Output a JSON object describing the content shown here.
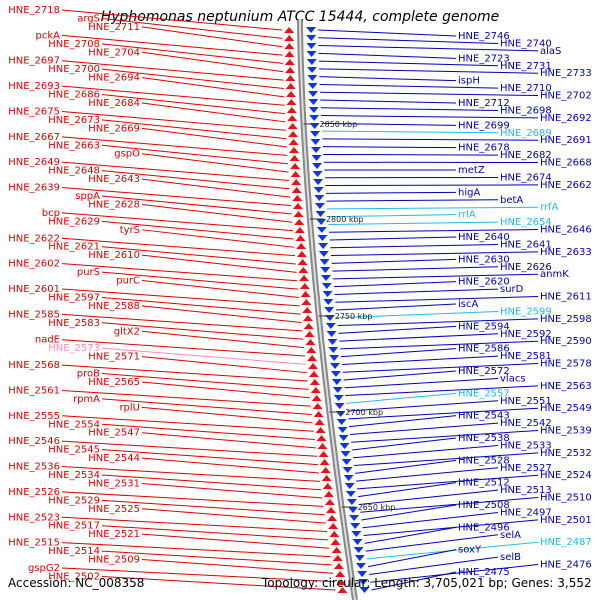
{
  "title": "Hyphomonas neptunium ATCC 15444, complete genome",
  "footer": {
    "accession": "Accession: NC_008358",
    "info": "Topology: circular; Length: 3,705,021 bp; Genes: 3,552"
  },
  "colors": {
    "left_label": "#dd0000",
    "left_highlight": "#ff88bb",
    "right_label": "#0000bb",
    "right_highlight": "#22bbee",
    "backbone": "#888888"
  },
  "kbp_marks": [
    "2850 kbp",
    "2800 kbp",
    "2750 kbp",
    "2700 kbp",
    "2650 kbp"
  ],
  "left_labels": [
    {
      "t": "HNE_2718",
      "h": false
    },
    {
      "t": "argS",
      "h": false
    },
    {
      "t": "HNE_2711",
      "h": false
    },
    {
      "t": "pckA",
      "h": false
    },
    {
      "t": "HNE_2708",
      "h": false
    },
    {
      "t": "HNE_2704",
      "h": false
    },
    {
      "t": "HNE_2697",
      "h": false
    },
    {
      "t": "HNE_2700",
      "h": false
    },
    {
      "t": "HNE_2694",
      "h": false
    },
    {
      "t": "HNE_2693",
      "h": false
    },
    {
      "t": "HNE_2686",
      "h": false
    },
    {
      "t": "HNE_2684",
      "h": false
    },
    {
      "t": "HNE_2675",
      "h": false
    },
    {
      "t": "HNE_2673",
      "h": false
    },
    {
      "t": "HNE_2669",
      "h": false
    },
    {
      "t": "HNE_2667",
      "h": false
    },
    {
      "t": "HNE_2663",
      "h": false
    },
    {
      "t": "gspO",
      "h": false
    },
    {
      "t": "HNE_2649",
      "h": false
    },
    {
      "t": "HNE_2648",
      "h": false
    },
    {
      "t": "HNE_2643",
      "h": false
    },
    {
      "t": "HNE_2639",
      "h": false
    },
    {
      "t": "sppA",
      "h": false
    },
    {
      "t": "HNE_2628",
      "h": false
    },
    {
      "t": "bcp",
      "h": false
    },
    {
      "t": "HNE_2629",
      "h": false
    },
    {
      "t": "tyrS",
      "h": false
    },
    {
      "t": "HNE_2622",
      "h": false
    },
    {
      "t": "HNE_2621",
      "h": false
    },
    {
      "t": "HNE_2610",
      "h": false
    },
    {
      "t": "HNE_2602",
      "h": false
    },
    {
      "t": "purS",
      "h": false
    },
    {
      "t": "purC",
      "h": false
    },
    {
      "t": "HNE_2601",
      "h": false
    },
    {
      "t": "HNE_2597",
      "h": false
    },
    {
      "t": "HNE_2588",
      "h": false
    },
    {
      "t": "HNE_2585",
      "h": false
    },
    {
      "t": "HNE_2583",
      "h": false
    },
    {
      "t": "gltX2",
      "h": false
    },
    {
      "t": "nadE",
      "h": false
    },
    {
      "t": "HNE_2573",
      "h": true
    },
    {
      "t": "HNE_2571",
      "h": false
    },
    {
      "t": "HNE_2568",
      "h": false
    },
    {
      "t": "proB",
      "h": false
    },
    {
      "t": "HNE_2565",
      "h": false
    },
    {
      "t": "HNE_2561",
      "h": false
    },
    {
      "t": "rpmA",
      "h": false
    },
    {
      "t": "rplU",
      "h": false
    },
    {
      "t": "HNE_2555",
      "h": false
    },
    {
      "t": "HNE_2554",
      "h": false
    },
    {
      "t": "HNE_2547",
      "h": false
    },
    {
      "t": "HNE_2546",
      "h": false
    },
    {
      "t": "HNE_2545",
      "h": false
    },
    {
      "t": "HNE_2544",
      "h": false
    },
    {
      "t": "HNE_2536",
      "h": false
    },
    {
      "t": "HNE_2534",
      "h": false
    },
    {
      "t": "HNE_2531",
      "h": false
    },
    {
      "t": "HNE_2526",
      "h": false
    },
    {
      "t": "HNE_2529",
      "h": false
    },
    {
      "t": "HNE_2525",
      "h": false
    },
    {
      "t": "HNE_2523",
      "h": false
    },
    {
      "t": "HNE_2517",
      "h": false
    },
    {
      "t": "HNE_2521",
      "h": false
    },
    {
      "t": "HNE_2515",
      "h": false
    },
    {
      "t": "HNE_2514",
      "h": false
    },
    {
      "t": "HNE_2509",
      "h": false
    },
    {
      "t": "gspG2",
      "h": false
    },
    {
      "t": "HNE_2502",
      "h": false
    }
  ],
  "right_labels": [
    {
      "t": "HNE_2746",
      "h": false
    },
    {
      "t": "HNE_2740",
      "h": false
    },
    {
      "t": "alaS",
      "h": false
    },
    {
      "t": "HNE_2723",
      "h": false
    },
    {
      "t": "HNE_2731",
      "h": false
    },
    {
      "t": "HNE_2733",
      "h": false
    },
    {
      "t": "ispH",
      "h": false
    },
    {
      "t": "HNE_2710",
      "h": false
    },
    {
      "t": "HNE_2702",
      "h": false
    },
    {
      "t": "HNE_2712",
      "h": false
    },
    {
      "t": "HNE_2698",
      "h": false
    },
    {
      "t": "HNE_2692",
      "h": false
    },
    {
      "t": "HNE_2699",
      "h": false
    },
    {
      "t": "HNE_2689",
      "h": true
    },
    {
      "t": "HNE_2691",
      "h": false
    },
    {
      "t": "HNE_2678",
      "h": false
    },
    {
      "t": "HNE_2682",
      "h": false
    },
    {
      "t": "HNE_2668",
      "h": false
    },
    {
      "t": "metZ",
      "h": false
    },
    {
      "t": "HNE_2674",
      "h": false
    },
    {
      "t": "HNE_2662",
      "h": false
    },
    {
      "t": "higA",
      "h": false
    },
    {
      "t": "betA",
      "h": false
    },
    {
      "t": "rrfA",
      "h": true
    },
    {
      "t": "rrlA",
      "h": true
    },
    {
      "t": "HNE_2654",
      "h": true
    },
    {
      "t": "HNE_2646",
      "h": false
    },
    {
      "t": "HNE_2640",
      "h": false
    },
    {
      "t": "HNE_2641",
      "h": false
    },
    {
      "t": "HNE_2633",
      "h": false
    },
    {
      "t": "HNE_2630",
      "h": false
    },
    {
      "t": "HNE_2626",
      "h": false
    },
    {
      "t": "anmK",
      "h": false
    },
    {
      "t": "HNE_2620",
      "h": false
    },
    {
      "t": "surD",
      "h": false
    },
    {
      "t": "HNE_2611",
      "h": false
    },
    {
      "t": "iscA",
      "h": false
    },
    {
      "t": "HNE_2599",
      "h": true
    },
    {
      "t": "HNE_2598",
      "h": false
    },
    {
      "t": "HNE_2594",
      "h": false
    },
    {
      "t": "HNE_2592",
      "h": false
    },
    {
      "t": "HNE_2590",
      "h": false
    },
    {
      "t": "HNE_2586",
      "h": false
    },
    {
      "t": "HNE_2581",
      "h": false
    },
    {
      "t": "HNE_2578",
      "h": false
    },
    {
      "t": "HNE_2572",
      "h": false
    },
    {
      "t": "vlacs",
      "h": false
    },
    {
      "t": "HNE_2563",
      "h": false
    },
    {
      "t": "HNE_2557",
      "h": true
    },
    {
      "t": "HNE_2551",
      "h": false
    },
    {
      "t": "HNE_2549",
      "h": false
    },
    {
      "t": "HNE_2543",
      "h": false
    },
    {
      "t": "HNE_2542",
      "h": false
    },
    {
      "t": "HNE_2539",
      "h": false
    },
    {
      "t": "HNE_2538",
      "h": false
    },
    {
      "t": "HNE_2533",
      "h": false
    },
    {
      "t": "HNE_2532",
      "h": false
    },
    {
      "t": "HNE_2528",
      "h": false
    },
    {
      "t": "HNE_2527",
      "h": false
    },
    {
      "t": "HNE_2524",
      "h": false
    },
    {
      "t": "HNE_2512",
      "h": false
    },
    {
      "t": "HNE_2513",
      "h": false
    },
    {
      "t": "HNE_2510",
      "h": false
    },
    {
      "t": "HNE_2508",
      "h": false
    },
    {
      "t": "HNE_2497",
      "h": false
    },
    {
      "t": "HNE_2501",
      "h": false
    },
    {
      "t": "HNE_2496",
      "h": false
    },
    {
      "t": "selA",
      "h": false
    },
    {
      "t": "HNE_2487",
      "h": true
    },
    {
      "t": "soxY",
      "h": false
    },
    {
      "t": "selB",
      "h": false
    },
    {
      "t": "HNE_2476",
      "h": false
    },
    {
      "t": "HNE_2475",
      "h": false
    }
  ]
}
